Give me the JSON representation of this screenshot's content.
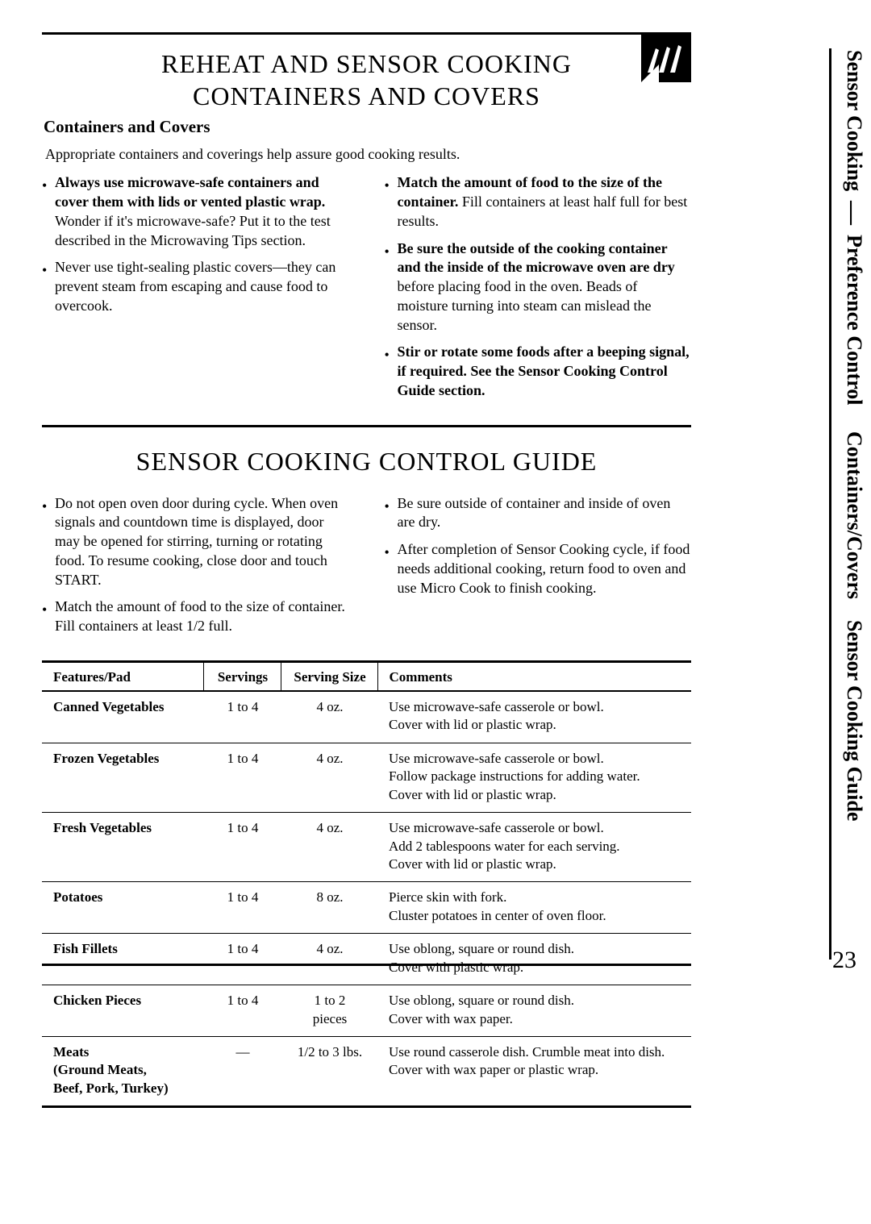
{
  "section1": {
    "title_line1": "REHEAT AND SENSOR COOKING",
    "title_line2": "CONTAINERS  AND  COVERS",
    "subhead": "Containers and Covers",
    "intro": "Appropriate containers and coverings help assure good cooking results.",
    "left_bullets": [
      {
        "bold": "Always use microwave-safe containers and cover them with lids or vented plastic wrap.",
        "rest": " Wonder if it's microwave-safe? Put it to the test described in the Microwaving Tips section."
      },
      {
        "bold": "",
        "rest": "Never use tight-sealing plastic covers—they can prevent steam from escaping and cause food to overcook."
      }
    ],
    "right_bullets": [
      {
        "bold": "Match the amount of food to the size of the container.",
        "rest": " Fill containers at least half full for best results."
      },
      {
        "bold": "Be sure the outside of the cooking container and the inside of the microwave oven are dry",
        "rest": " before placing food in the oven. Beads of moisture turning into steam can mislead the sensor."
      },
      {
        "bold": "Stir or rotate some foods after a beeping signal, if required. See the Sensor Cooking Control Guide section.",
        "rest": ""
      }
    ]
  },
  "section2": {
    "title": "SENSOR COOKING CONTROL GUIDE",
    "left_bullets": [
      "Do not open oven door during cycle. When oven signals and countdown time is displayed, door may be opened for stirring, turning or rotating food. To resume cooking, close door and touch START.",
      "Match the amount of food to the size of container. Fill containers at least 1/2 full."
    ],
    "right_bullets": [
      "Be sure outside of container and inside of oven are dry.",
      "After completion of Sensor Cooking cycle, if food needs additional cooking, return food to oven and use Micro Cook to finish cooking."
    ]
  },
  "table": {
    "headers": [
      "Features/Pad",
      "Servings",
      "Serving Size",
      "Comments"
    ],
    "rows": [
      {
        "f": "Canned Vegetables",
        "s": "1 to 4",
        "sz": "4 oz.",
        "c": "Use microwave-safe casserole or bowl.\nCover with lid or plastic wrap."
      },
      {
        "f": "Frozen Vegetables",
        "s": "1 to 4",
        "sz": "4 oz.",
        "c": "Use microwave-safe casserole or bowl.\nFollow package instructions for adding water.\nCover with lid or plastic wrap."
      },
      {
        "f": "Fresh Vegetables",
        "s": "1 to 4",
        "sz": "4 oz.",
        "c": "Use microwave-safe casserole or bowl.\nAdd 2 tablespoons water for each serving.\nCover with lid or plastic wrap."
      },
      {
        "f": "Potatoes",
        "s": "1 to 4",
        "sz": "8 oz.",
        "c": "Pierce skin with fork.\nCluster potatoes in center of oven floor."
      },
      {
        "f": "Fish Fillets",
        "s": "1 to 4",
        "sz": "4 oz.",
        "c": "Use oblong, square or round dish.\nCover with plastic wrap."
      },
      {
        "f": "Chicken Pieces",
        "s": "1 to 4",
        "sz": "1 to 2\npieces",
        "c": "Use oblong, square or round dish.\nCover with wax paper."
      },
      {
        "f": "Meats\n(Ground Meats,\nBeef, Pork, Turkey)",
        "s": "—",
        "sz": "1/2 to 3 lbs.",
        "c": "Use round casserole dish. Crumble meat into dish.\nCover with wax paper or plastic wrap."
      }
    ]
  },
  "side_tabs": [
    "Sensor Cooking",
    "Preference Control",
    "Containers/Covers",
    "Sensor Cooking Guide"
  ],
  "page_number": "23"
}
